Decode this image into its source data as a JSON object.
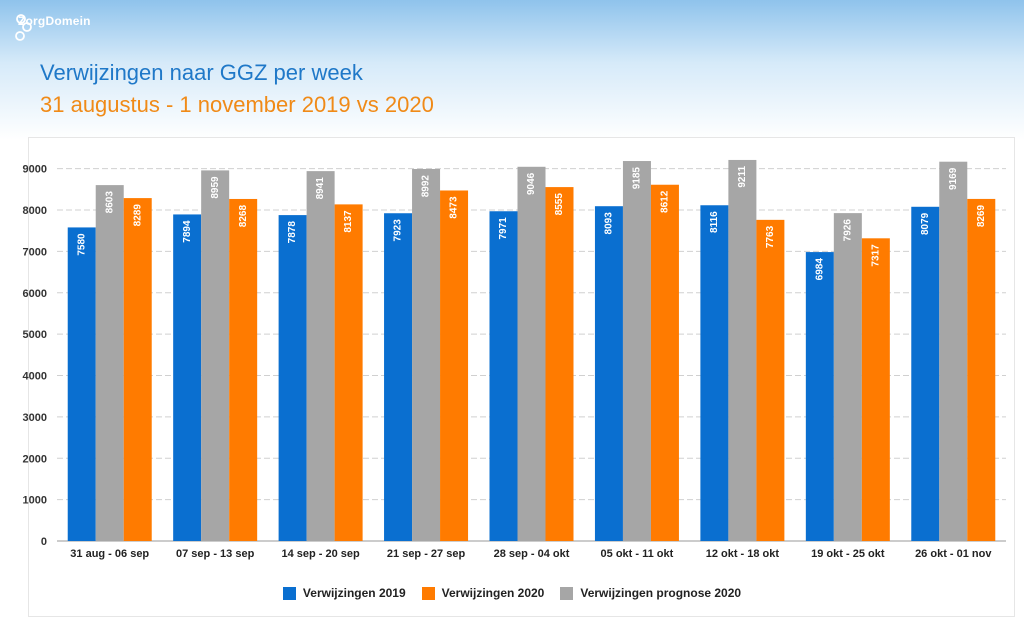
{
  "brand": {
    "name": "ZorgDomein"
  },
  "header": {
    "title": "Verwijzingen naar GGZ per week",
    "subtitle": "31 augustus - 1 november 2019 vs 2020"
  },
  "colors": {
    "title": "#1f78c8",
    "subtitle": "#f08a17",
    "series_2019": "#0a6fd0",
    "series_2020": "#ff7b00",
    "series_prognose": "#a6a6a6"
  },
  "chart_data": {
    "type": "bar",
    "title": "Verwijzingen naar GGZ per week",
    "subtitle": "31 augustus - 1 november 2019 vs 2020",
    "xlabel": "",
    "ylabel": "",
    "ylim": [
      0,
      9500
    ],
    "yticks": [
      0,
      1000,
      2000,
      3000,
      4000,
      5000,
      6000,
      7000,
      8000,
      9000
    ],
    "grid": true,
    "legend_position": "bottom",
    "categories": [
      "31 aug - 06 sep",
      "07 sep - 13 sep",
      "14 sep - 20 sep",
      "21 sep - 27 sep",
      "28 sep - 04 okt",
      "05 okt - 11 okt",
      "12 okt - 18 okt",
      "19 okt - 25 okt",
      "26 okt - 01 nov"
    ],
    "series": [
      {
        "name": "Verwijzingen 2019",
        "color": "#0a6fd0",
        "values": [
          7580,
          7894,
          7878,
          7923,
          7971,
          8093,
          8116,
          6984,
          8079
        ]
      },
      {
        "name": "Verwijzingen prognose 2020",
        "color": "#a6a6a6",
        "values": [
          8603,
          8959,
          8941,
          8992,
          9046,
          9185,
          9211,
          7926,
          9169
        ]
      },
      {
        "name": "Verwijzingen 2020",
        "color": "#ff7b00",
        "values": [
          8289,
          8268,
          8137,
          8473,
          8555,
          8612,
          7763,
          7317,
          8269
        ]
      }
    ],
    "legend": [
      "Verwijzingen 2019",
      "Verwijzingen 2020",
      "Verwijzingen prognose 2020"
    ]
  }
}
